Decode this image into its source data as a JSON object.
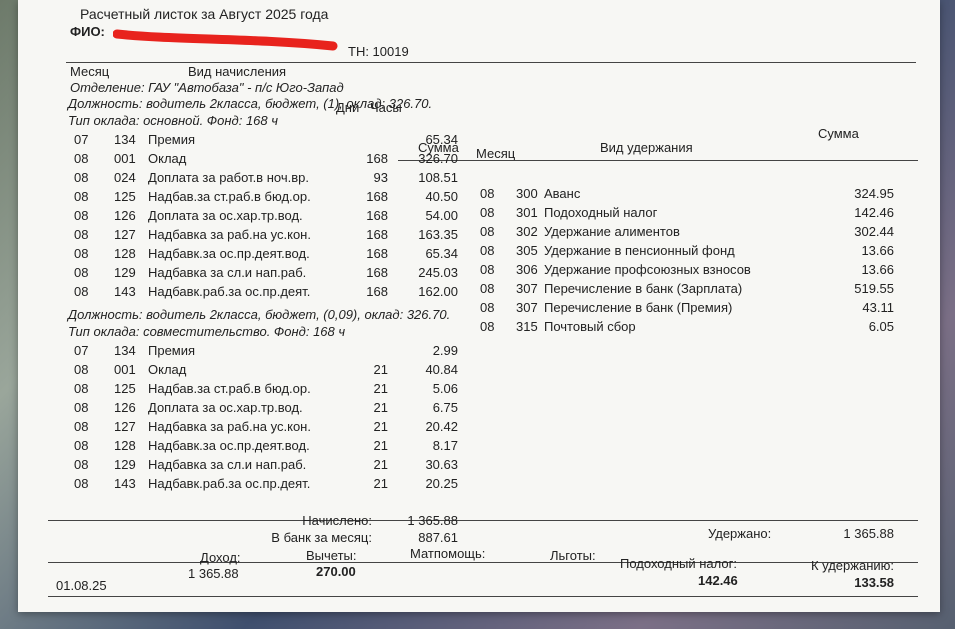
{
  "header": {
    "title": "Расчетный листок за Август 2025 года",
    "fio_label": "ФИО:",
    "tn": "ТН: 10019",
    "department": "Отделение: ГАУ \"Автобаза\" - п/с Юго-Запад"
  },
  "columns": {
    "month": "Месяц",
    "accrual_type": "Вид начисления",
    "days": "Дни",
    "hours": "Часы",
    "sum": "Сумма",
    "month_right": "Месяц",
    "deduction_type": "Вид удержания",
    "sum_right": "Сумма"
  },
  "positions": [
    {
      "position": "Должность: водитель 2класса, бюджет, (1), оклад: 326.70.",
      "salary_type": "Тип оклада: основной. Фонд: 168 ч",
      "rows": [
        {
          "month": "07",
          "code": "134",
          "name": "Премия",
          "sum": "65.34"
        },
        {
          "month": "08",
          "code": "001",
          "name": "Оклад",
          "hours": "168",
          "sum": "326.70"
        },
        {
          "month": "08",
          "code": "024",
          "name": "Доплата за работ.в ноч.вр.",
          "hours": "93",
          "sum": "108.51"
        },
        {
          "month": "08",
          "code": "125",
          "name": "Надбав.за ст.раб.в бюд.ор.",
          "hours": "168",
          "sum": "40.50"
        },
        {
          "month": "08",
          "code": "126",
          "name": "Доплата за ос.хар.тр.вод.",
          "hours": "168",
          "sum": "54.00"
        },
        {
          "month": "08",
          "code": "127",
          "name": "Надбавка за раб.на ус.кон.",
          "hours": "168",
          "sum": "163.35"
        },
        {
          "month": "08",
          "code": "128",
          "name": "Надбавк.за ос.пр.деят.вод.",
          "hours": "168",
          "sum": "65.34"
        },
        {
          "month": "08",
          "code": "129",
          "name": "Надбавка за сл.и нап.раб.",
          "hours": "168",
          "sum": "245.03"
        },
        {
          "month": "08",
          "code": "143",
          "name": "Надбавк.раб.за ос.пр.деят.",
          "hours": "168",
          "sum": "162.00"
        }
      ]
    },
    {
      "position": "Должность: водитель 2класса, бюджет, (0,09), оклад: 326.70.",
      "salary_type": "Тип оклада: совместительство. Фонд: 168 ч",
      "rows": [
        {
          "month": "07",
          "code": "134",
          "name": "Премия",
          "sum": "2.99"
        },
        {
          "month": "08",
          "code": "001",
          "name": "Оклад",
          "hours": "21",
          "sum": "40.84"
        },
        {
          "month": "08",
          "code": "125",
          "name": "Надбав.за ст.раб.в бюд.ор.",
          "hours": "21",
          "sum": "5.06"
        },
        {
          "month": "08",
          "code": "126",
          "name": "Доплата за ос.хар.тр.вод.",
          "hours": "21",
          "sum": "6.75"
        },
        {
          "month": "08",
          "code": "127",
          "name": "Надбавка за раб.на ус.кон.",
          "hours": "21",
          "sum": "20.42"
        },
        {
          "month": "08",
          "code": "128",
          "name": "Надбавк.за ос.пр.деят.вод.",
          "hours": "21",
          "sum": "8.17"
        },
        {
          "month": "08",
          "code": "129",
          "name": "Надбавка за сл.и нап.раб.",
          "hours": "21",
          "sum": "30.63"
        },
        {
          "month": "08",
          "code": "143",
          "name": "Надбавк.раб.за ос.пр.деят.",
          "hours": "21",
          "sum": "20.25"
        }
      ]
    }
  ],
  "deductions": [
    {
      "month": "08",
      "code": "300",
      "name": "Аванс",
      "sum": "324.95"
    },
    {
      "month": "08",
      "code": "301",
      "name": "Подоходный налог",
      "sum": "142.46"
    },
    {
      "month": "08",
      "code": "302",
      "name": "Удержание алиментов",
      "sum": "302.44"
    },
    {
      "month": "08",
      "code": "305",
      "name": "Удержание в пенсионный фонд",
      "sum": "13.66"
    },
    {
      "month": "08",
      "code": "306",
      "name": "Удержание профсоюзных взносов",
      "sum": "13.66"
    },
    {
      "month": "08",
      "code": "307",
      "name": "Перечисление в банк (Зарплата)",
      "sum": "519.55"
    },
    {
      "month": "08",
      "code": "307",
      "name": "Перечисление в банк (Премия)",
      "sum": "43.11"
    },
    {
      "month": "08",
      "code": "315",
      "name": "Почтовый сбор",
      "sum": "6.05"
    }
  ],
  "totals": {
    "accrued_label": "Начислено:",
    "accrued": "1 365.88",
    "bank_label": "В банк за месяц:",
    "bank": "887.61",
    "withheld_label": "Удержано:",
    "withheld": "1 365.88"
  },
  "footer": {
    "date": "01.08.25",
    "income_label": "Доход:",
    "income": "1 365.88",
    "deductions_label": "Вычеты:",
    "deductions": "270.00",
    "aid_label": "Матпомощь:",
    "benefits_label": "Льготы:",
    "tax_label": "Подоходный налог:",
    "tax": "142.46",
    "due_label": "К удержанию:",
    "due": "133.58"
  }
}
